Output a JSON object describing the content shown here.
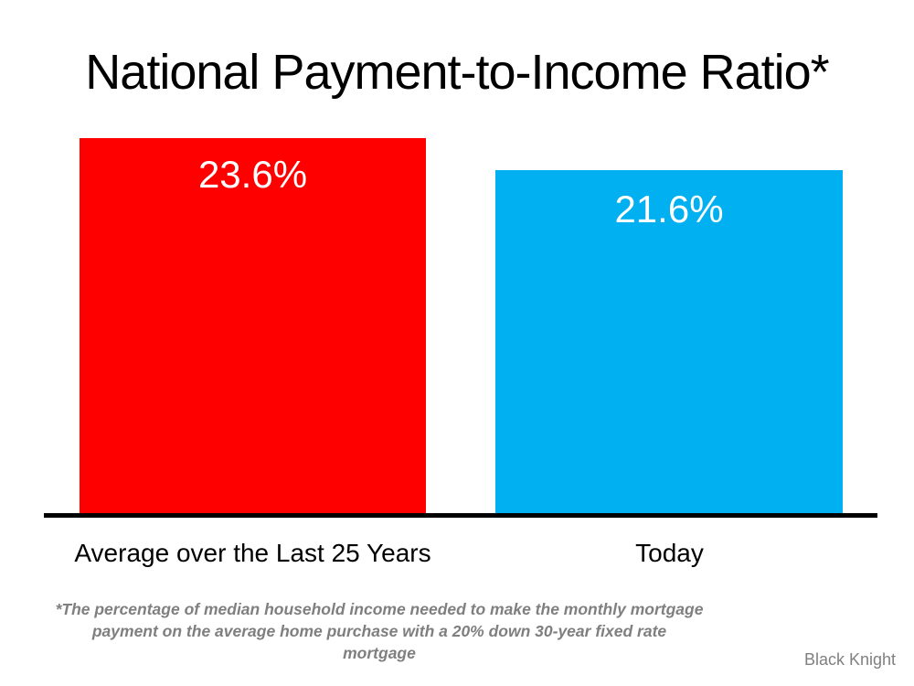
{
  "page": {
    "title": "National Payment-to-Income Ratio*",
    "footnote": {
      "line1": "*The percentage of median household income needed to make the monthly mortgage",
      "line2": "payment on the average home purchase with a 20% down 30-year fixed rate mortgage"
    },
    "source": "Black Knight",
    "colors": {
      "background": "#FFFFFF",
      "title_text": "#000000",
      "bar_average": "#FF0000",
      "bar_today": "#00B0F0",
      "value_label_text": "#FFFFFF",
      "axis_line": "#000000",
      "category_label_text": "#000000",
      "footnote_text": "#7F7F7F",
      "source_text": "#808080"
    }
  },
  "chart_data": {
    "type": "bar",
    "title": "National Payment-to-Income Ratio*",
    "categories": [
      "Average over the Last 25 Years",
      "Today"
    ],
    "values": [
      23.6,
      21.6
    ],
    "value_labels": [
      "23.6%",
      "21.6%"
    ],
    "bar_colors": [
      "#FF0000",
      "#00B0F0"
    ],
    "ylabel": "",
    "xlabel": "",
    "ylim": [
      0,
      24.2
    ],
    "grid": false,
    "legend": false,
    "value_label_position": "inside-top",
    "baseline_axis_only": true,
    "footnote": "*The percentage of median household income needed to make the monthly mortgage payment on the average home purchase with a 20% down 30-year fixed rate mortgage",
    "source": "Black Knight"
  }
}
